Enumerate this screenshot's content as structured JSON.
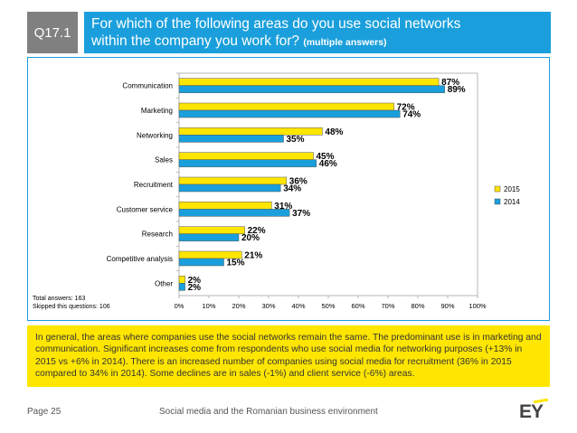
{
  "header": {
    "question_code": "Q17.1",
    "title_line1": "For which of the following areas do you use social networks",
    "title_line2": "within the company you work for?",
    "subtitle": "(multiple answers)"
  },
  "notes": {
    "total": "Total answers: 163",
    "skipped": "Skipped this questions: 106"
  },
  "summary": "In general, the areas where companies use the social networks remain the same. The predominant use is in marketing and communication. Significant increases come from respondents who use social media for networking purposes (+13% in 2015 vs +6% in 2014). There is an increased number of companies using social media for recruitment (36% in 2015 compared to 34% in 2014). Some declines are in sales (-1%) and client service (-6%) areas.",
  "footer": {
    "page": "Page 25",
    "doc_title": "Social media and the Romanian business environment",
    "logo": "EY"
  },
  "colors": {
    "accent": "#1a9fdc",
    "series_2015": "#ffe600",
    "series_2014": "#1a9fdc",
    "grey": "#808080"
  },
  "chart_data": {
    "type": "bar",
    "orientation": "horizontal",
    "categories": [
      "Communication",
      "Marketing",
      "Networking",
      "Sales",
      "Recruitment",
      "Customer service",
      "Research",
      "Competitive analysis",
      "Other"
    ],
    "series": [
      {
        "name": "2015",
        "values": [
          87,
          72,
          48,
          45,
          36,
          31,
          22,
          21,
          2
        ]
      },
      {
        "name": "2014",
        "values": [
          89,
          74,
          35,
          46,
          34,
          37,
          20,
          15,
          2
        ]
      }
    ],
    "xlim": [
      0,
      100
    ],
    "xticks": [
      "0%",
      "10%",
      "20%",
      "30%",
      "40%",
      "50%",
      "60%",
      "70%",
      "80%",
      "90%",
      "100%"
    ],
    "legend": "right",
    "value_suffix": "%"
  }
}
